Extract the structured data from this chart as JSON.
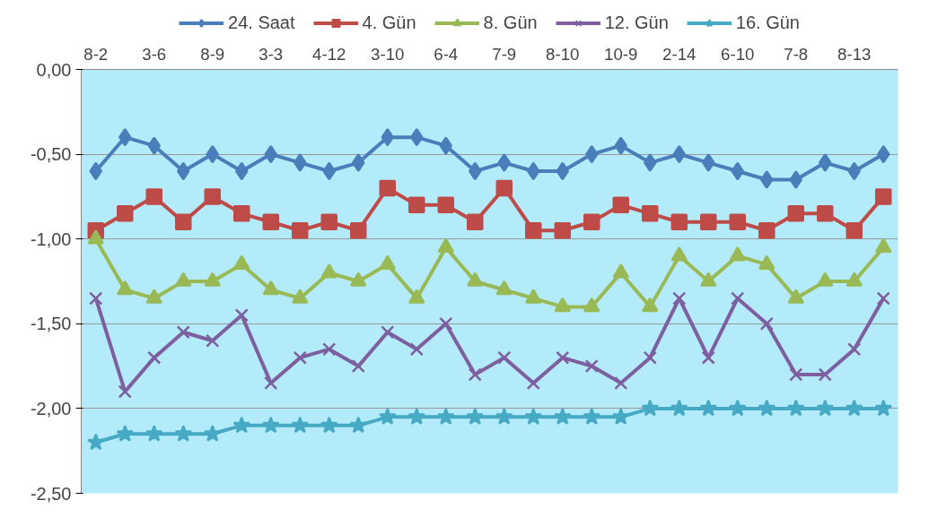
{
  "chart_data": {
    "type": "line",
    "categories": [
      "8-2",
      null,
      "3-6",
      null,
      "8-9",
      null,
      "3-3",
      null,
      "4-12",
      null,
      "3-10",
      null,
      "6-4",
      null,
      "7-9",
      null,
      "8-10",
      null,
      "10-9",
      null,
      "2-14",
      null,
      "6-10",
      null,
      "7-8",
      null,
      "8-13",
      null
    ],
    "series": [
      {
        "name": "24. Saat",
        "color": "#4a7ebb",
        "marker": "diamond",
        "values": [
          -0.6,
          -0.4,
          -0.45,
          -0.6,
          -0.5,
          -0.6,
          -0.5,
          -0.55,
          -0.6,
          -0.55,
          -0.4,
          -0.4,
          -0.45,
          -0.6,
          -0.55,
          -0.6,
          -0.6,
          -0.5,
          -0.45,
          -0.55,
          -0.5,
          -0.55,
          -0.6,
          -0.65,
          -0.65,
          -0.55,
          -0.6,
          -0.5
        ]
      },
      {
        "name": "4. Gün",
        "color": "#be4b48",
        "marker": "square",
        "values": [
          -0.95,
          -0.85,
          -0.75,
          -0.9,
          -0.75,
          -0.85,
          -0.9,
          -0.95,
          -0.9,
          -0.95,
          -0.7,
          -0.8,
          -0.8,
          -0.9,
          -0.7,
          -0.95,
          -0.95,
          -0.9,
          -0.8,
          -0.85,
          -0.9,
          -0.9,
          -0.9,
          -0.95,
          -0.85,
          -0.85,
          -0.95,
          -0.75
        ]
      },
      {
        "name": "8. Gün",
        "color": "#98b954",
        "marker": "triangle",
        "values": [
          -1.0,
          -1.3,
          -1.35,
          -1.25,
          -1.25,
          -1.15,
          -1.3,
          -1.35,
          -1.2,
          -1.25,
          -1.15,
          -1.35,
          -1.05,
          -1.25,
          -1.3,
          -1.35,
          -1.4,
          -1.4,
          -1.2,
          -1.4,
          -1.1,
          -1.25,
          -1.1,
          -1.15,
          -1.35,
          -1.25,
          -1.25,
          -1.05
        ]
      },
      {
        "name": "12. Gün",
        "color": "#7d5fa0",
        "marker": "cross",
        "values": [
          -1.35,
          -1.9,
          -1.7,
          -1.55,
          -1.6,
          -1.45,
          -1.85,
          -1.7,
          -1.65,
          -1.75,
          -1.55,
          -1.65,
          -1.5,
          -1.8,
          -1.7,
          -1.85,
          -1.7,
          -1.75,
          -1.85,
          -1.7,
          -1.35,
          -1.7,
          -1.35,
          -1.5,
          -1.8,
          -1.8,
          -1.65,
          -1.35
        ]
      },
      {
        "name": "16. Gün",
        "color": "#46aac5",
        "marker": "star",
        "values": [
          -2.2,
          -2.15,
          -2.15,
          -2.15,
          -2.15,
          -2.1,
          -2.1,
          -2.1,
          -2.1,
          -2.1,
          -2.05,
          -2.05,
          -2.05,
          -2.05,
          -2.05,
          -2.05,
          -2.05,
          -2.05,
          -2.05,
          -2.0,
          -2.0,
          -2.0,
          -2.0,
          -2.0,
          -2.0,
          -2.0,
          -2.0,
          -2.0
        ]
      }
    ],
    "ylim": [
      -2.5,
      0
    ],
    "yticks": [
      {
        "value": 0,
        "label": "0,00"
      },
      {
        "value": -0.5,
        "label": "-0,50"
      },
      {
        "value": -1,
        "label": "-1,00"
      },
      {
        "value": -1.5,
        "label": "-1,50"
      },
      {
        "value": -2,
        "label": "-2,00"
      },
      {
        "value": -2.5,
        "label": "-2,50"
      }
    ],
    "grid": "y",
    "legend": "top"
  }
}
